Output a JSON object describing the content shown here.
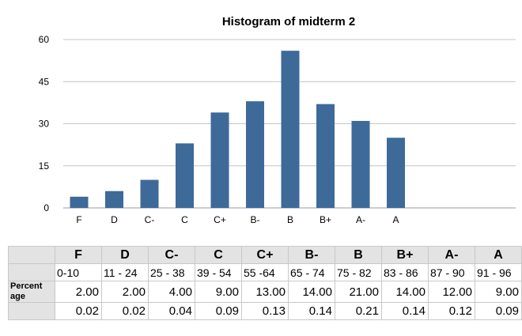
{
  "chart_data": {
    "type": "bar",
    "title": "Histogram of midterm 2",
    "categories": [
      "F",
      "D",
      "C-",
      "C",
      "C+",
      "B-",
      "B",
      "B+",
      "A-",
      "A"
    ],
    "values": [
      4,
      6,
      10,
      23,
      34,
      38,
      56,
      37,
      31,
      25
    ],
    "yticks": [
      0,
      15,
      30,
      45,
      60
    ],
    "ylim": [
      0,
      60
    ],
    "xlabel": "",
    "ylabel": "",
    "grid": true,
    "legend": "none",
    "bar_color": "#3d6a99"
  },
  "table": {
    "grades": [
      "F",
      "D",
      "C-",
      "C",
      "C+",
      "B-",
      "B",
      "B+",
      "A-",
      "A"
    ],
    "ranges": [
      "0-10",
      "11 - 24",
      "25 - 38",
      "39 - 54",
      "55 -64",
      "65 - 74",
      "75 - 82",
      "83 - 86",
      "87 - 90",
      "91 - 96"
    ],
    "row_label_line1": "Percent",
    "row_label_line2": "age",
    "percentages": [
      "2.00",
      "2.00",
      "4.00",
      "9.00",
      "13.00",
      "14.00",
      "21.00",
      "14.00",
      "12.00",
      "9.00"
    ],
    "fractions": [
      "0.02",
      "0.02",
      "0.04",
      "0.09",
      "0.13",
      "0.14",
      "0.21",
      "0.14",
      "0.12",
      "0.09"
    ]
  }
}
